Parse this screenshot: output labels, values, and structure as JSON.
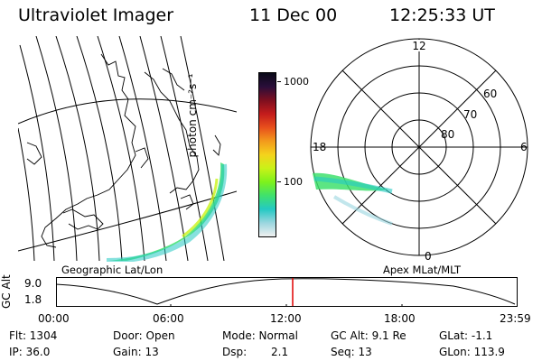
{
  "header": {
    "instrument": "Ultraviolet Imager",
    "date": "11 Dec 00",
    "time": "12:25:33 UT"
  },
  "colorbar": {
    "unit_label": "photon cm⁻²s⁻¹",
    "ticks": [
      "1000",
      "100"
    ],
    "colors": [
      "#f0f0f0",
      "#9ad6df",
      "#24c9c3",
      "#3fe16d",
      "#7df21c",
      "#c9f218",
      "#f4d31c",
      "#f39a1c",
      "#e8501c",
      "#c41c1c",
      "#7d0f1f",
      "#2a0e3a",
      "#0a0a18"
    ]
  },
  "geo_map": {
    "caption": "Geographic Lat/Lon"
  },
  "polar_plot": {
    "caption": "Apex MLat/MLT",
    "mlt_labels": [
      "12",
      "18",
      "6",
      "0"
    ],
    "mlat_labels": [
      "60",
      "70",
      "80"
    ]
  },
  "altitude_strip": {
    "ylabel": "GC Alt",
    "yticks": [
      "9.0",
      "1.8"
    ],
    "xticks": [
      "00:00",
      "06:00",
      "12:00",
      "18:00",
      "23:59"
    ],
    "current_time_color": "#e00000"
  },
  "info": {
    "flt": "Flt: 1304",
    "ip": "IP: 36.0",
    "door": "Door: Open",
    "gain": "Gain: 13",
    "mode": "Mode: Normal",
    "dsp_label": "Dsp:",
    "dsp_value": "2.1",
    "gc_alt": "GC Alt: 9.1 Re",
    "seq": "Seq: 13",
    "glat": "GLat:  -1.1",
    "glon": "GLon: 113.9"
  }
}
